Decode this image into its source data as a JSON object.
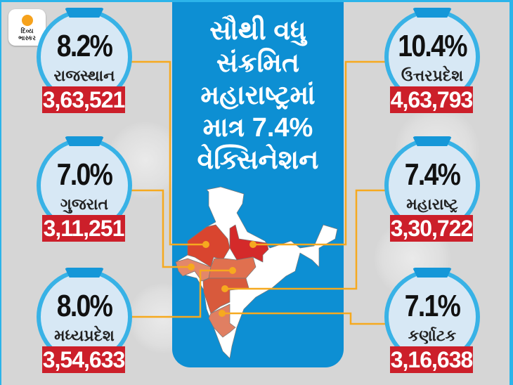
{
  "brand": {
    "name_line1": "દિવ્ય",
    "name_line2": "ભાસ્કર"
  },
  "headline": [
    "સૌથી વધુ",
    "સંક્રમિત",
    "મહારાષ્ટ્રમાં",
    "માત્ર 7.4%",
    "વેક્સિનેશન"
  ],
  "states": [
    {
      "name": "રાજસ્થાન",
      "vaccination_pct": "8.2%",
      "cases": "3,63,521"
    },
    {
      "name": "ગુજરાત",
      "vaccination_pct": "7.0%",
      "cases": "3,11,251"
    },
    {
      "name": "મધ્યપ્રદેશ",
      "vaccination_pct": "8.0%",
      "cases": "3,54,633"
    },
    {
      "name": "ઉત્તરપ્રદેશ",
      "vaccination_pct": "10.4%",
      "cases": "4,63,793"
    },
    {
      "name": "મહારાષ્ટ્ર",
      "vaccination_pct": "7.4%",
      "cases": "3,30,722"
    },
    {
      "name": "કર્ણાટક",
      "vaccination_pct": "7.1%",
      "cases": "3,16,638"
    }
  ],
  "colors": {
    "panel": "#0d8fd3",
    "ring": "#38b2e6",
    "cases_bg": "#cc1f2a",
    "connector": "#f6a91f"
  }
}
